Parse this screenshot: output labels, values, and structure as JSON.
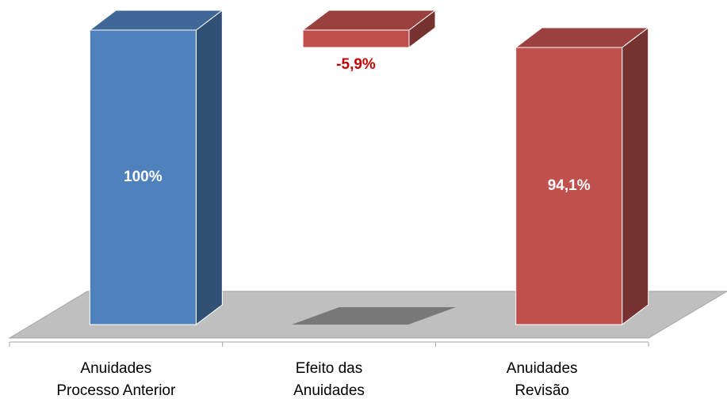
{
  "chart_data": {
    "type": "waterfall",
    "categories": [
      "Anuidades\nProcesso Anterior",
      "Efeito das\nAnuidades",
      "Anuidades\nRevisão"
    ],
    "values": [
      100,
      -5.9,
      94.1
    ],
    "value_labels": [
      "100%",
      "-5,9%",
      "94,1%"
    ],
    "measure": [
      "absolute",
      "relative",
      "absolute"
    ],
    "colors": [
      "#4f81bd",
      "#c0504d",
      "#c0504d"
    ]
  }
}
